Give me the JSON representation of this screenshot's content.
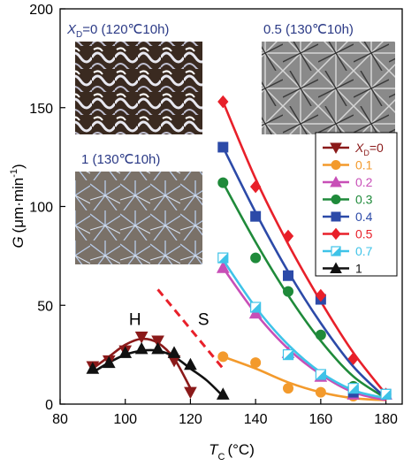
{
  "chart_data": {
    "type": "scatter",
    "xlabel_main": "T",
    "xlabel_sub": "C",
    "xlabel_unit": "(°C)",
    "ylabel_main": "G",
    "ylabel_unit": "(μm·min",
    "ylabel_sup": "-1",
    "ylabel_close": ")",
    "xlim": [
      80,
      185
    ],
    "ylim": [
      0,
      200
    ],
    "x_ticks": [
      "80",
      "100",
      "120",
      "140",
      "160",
      "180"
    ],
    "x_tick_values": [
      80,
      100,
      120,
      140,
      160,
      180
    ],
    "y_ticks": [
      "0",
      "50",
      "100",
      "150",
      "200"
    ],
    "y_tick_values": [
      0,
      50,
      100,
      150,
      200
    ],
    "grid": false,
    "legend_position": "right",
    "legend_title_prefix": "X",
    "legend_title_sub": "D",
    "legend_title_suffix": "=0",
    "series": [
      {
        "name": "0",
        "color": "#8b1a1a",
        "marker": "triangle-down",
        "x": [
          90,
          95,
          100,
          105,
          110,
          115,
          120
        ],
        "y": [
          19,
          22,
          27,
          34,
          32,
          22,
          6
        ],
        "fit": [
          [
            90,
            18
          ],
          [
            95,
            24
          ],
          [
            100,
            30
          ],
          [
            105,
            33
          ],
          [
            110,
            31
          ],
          [
            115,
            23
          ],
          [
            120,
            8
          ]
        ]
      },
      {
        "name": "0.1",
        "color": "#f39a2c",
        "marker": "circle",
        "x": [
          130,
          140,
          150,
          160,
          170,
          180
        ],
        "y": [
          24,
          21,
          8,
          6,
          4,
          5
        ],
        "fit": [
          [
            130,
            24
          ],
          [
            140,
            18
          ],
          [
            150,
            11
          ],
          [
            160,
            6
          ],
          [
            170,
            3
          ],
          [
            180,
            2
          ]
        ]
      },
      {
        "name": "0.2",
        "color": "#c84fb7",
        "marker": "triangle-up",
        "x": [
          130,
          140,
          150,
          160,
          170,
          180
        ],
        "y": [
          69,
          46,
          26,
          14,
          5,
          5
        ],
        "fit": [
          [
            130,
            69
          ],
          [
            140,
            46
          ],
          [
            150,
            28
          ],
          [
            160,
            15
          ],
          [
            170,
            6
          ],
          [
            180,
            2
          ]
        ]
      },
      {
        "name": "0.3",
        "color": "#1f8a3a",
        "marker": "circle",
        "x": [
          130,
          140,
          150,
          160,
          170,
          180
        ],
        "y": [
          112,
          74,
          57,
          35,
          9,
          5
        ],
        "fit": [
          [
            130,
            112
          ],
          [
            140,
            82
          ],
          [
            150,
            55
          ],
          [
            160,
            32
          ],
          [
            170,
            14
          ],
          [
            180,
            3
          ]
        ]
      },
      {
        "name": "0.4",
        "color": "#2c4aa8",
        "marker": "square",
        "x": [
          130,
          140,
          150,
          160,
          170,
          180
        ],
        "y": [
          130,
          95,
          65,
          53,
          6,
          5
        ],
        "fit": [
          [
            130,
            130
          ],
          [
            140,
            97
          ],
          [
            150,
            67
          ],
          [
            160,
            41
          ],
          [
            170,
            19
          ],
          [
            180,
            3
          ]
        ]
      },
      {
        "name": "0.5",
        "color": "#e8202a",
        "marker": "diamond",
        "x": [
          130,
          140,
          150,
          160,
          170,
          180
        ],
        "y": [
          153,
          110,
          85,
          55,
          23,
          5
        ],
        "fit": [
          [
            130,
            153
          ],
          [
            140,
            114
          ],
          [
            150,
            81
          ],
          [
            160,
            52
          ],
          [
            170,
            26
          ],
          [
            180,
            5
          ]
        ]
      },
      {
        "name": "0.7",
        "color": "#3ec3e8",
        "marker": "half-square",
        "x": [
          130,
          140,
          150,
          160,
          170,
          180
        ],
        "y": [
          74,
          49,
          25,
          15,
          8,
          5
        ],
        "fit": [
          [
            130,
            73
          ],
          [
            140,
            49
          ],
          [
            150,
            30
          ],
          [
            160,
            16
          ],
          [
            170,
            7
          ],
          [
            180,
            3
          ]
        ]
      },
      {
        "name": "1",
        "color": "#111111",
        "marker": "triangle-up",
        "x": [
          90,
          95,
          100,
          105,
          110,
          115,
          120,
          130
        ],
        "y": [
          18,
          21,
          26,
          28,
          28,
          26,
          20,
          5
        ],
        "fit": [
          [
            90,
            16
          ],
          [
            95,
            21
          ],
          [
            100,
            25
          ],
          [
            105,
            27
          ],
          [
            110,
            27
          ],
          [
            115,
            24
          ],
          [
            120,
            18
          ],
          [
            125,
            12
          ],
          [
            130,
            4
          ]
        ]
      }
    ],
    "annotations": [
      {
        "text": "H",
        "x": 103,
        "y": 40
      },
      {
        "text": "S",
        "x": 124,
        "y": 40
      }
    ],
    "boundary_line": {
      "color": "#e8202a",
      "style": "dashed",
      "points": [
        [
          110,
          58
        ],
        [
          130,
          18
        ]
      ]
    }
  },
  "insets": [
    {
      "caption_prefix": "X",
      "caption_sub": "D",
      "caption_text": "=0 (120℃10h)",
      "pattern": "dark-spherulites"
    },
    {
      "caption_text": "0.5 (130℃10h)",
      "pattern": "gray-spherulites"
    },
    {
      "caption_text": "1 (130℃10h)",
      "pattern": "blue-fibrous"
    }
  ],
  "colors": {
    "axis": "#000000",
    "caption": "#2b3a86"
  }
}
